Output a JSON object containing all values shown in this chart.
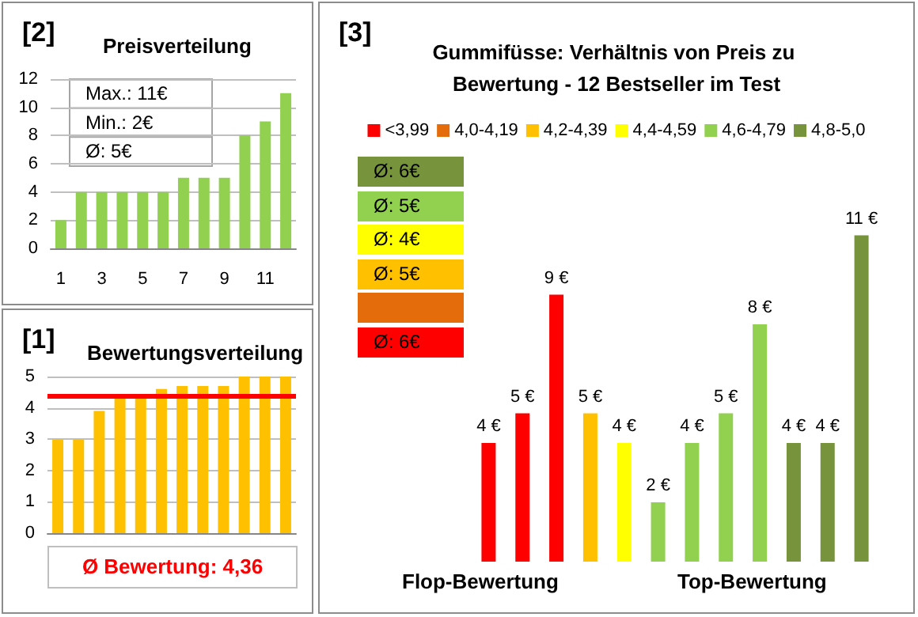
{
  "chart_data": [
    {
      "type": "bar",
      "title": "Preisverteilung",
      "annotations": [
        "[2]",
        "Max.: 11€",
        "Min.: 2€",
        "Ø: 5€"
      ],
      "categories": [
        "1",
        null,
        "3",
        null,
        "5",
        null,
        "7",
        null,
        "9",
        null,
        "11",
        null
      ],
      "values": [
        2,
        4,
        4,
        4,
        4,
        4,
        5,
        5,
        5,
        8,
        9,
        11
      ],
      "color": "#92d050",
      "ylim": [
        0,
        12
      ],
      "yticks": [
        0,
        2,
        4,
        6,
        8,
        10,
        12
      ],
      "grid": "y"
    },
    {
      "type": "bar",
      "title": "Gummifüsse: Verhältnis von Preis zu Bewertung - 12 Bestseller im Test",
      "annotations": [
        "[3]",
        "Ø: 6€",
        "Ø: 5€",
        "Ø: 4€",
        "Ø: 5€",
        "Ø: 6€",
        "Flop-Bewertung",
        "Top-Bewertung"
      ],
      "categories": [
        null,
        null,
        null,
        null,
        null,
        null,
        null,
        null,
        null,
        null,
        null,
        null
      ],
      "series": [
        {
          "name": "<3,99",
          "color": "#ff0000",
          "values": [
            4,
            5,
            9,
            null,
            null,
            null,
            null,
            null,
            null,
            null,
            null,
            null
          ],
          "value_labels": [
            "4 €",
            "5 €",
            "9 €",
            null,
            null,
            null,
            null,
            null,
            null,
            null,
            null,
            null
          ]
        },
        {
          "name": "4,0-4,19",
          "color": "#e46c0a",
          "values": [
            null,
            null,
            null,
            null,
            null,
            null,
            null,
            null,
            null,
            null,
            null,
            null
          ]
        },
        {
          "name": "4,2-4,39",
          "color": "#ffc000",
          "values": [
            null,
            null,
            null,
            5,
            null,
            null,
            null,
            null,
            null,
            null,
            null,
            null
          ],
          "value_labels": [
            null,
            null,
            null,
            "5 €",
            null,
            null,
            null,
            null,
            null,
            null,
            null,
            null
          ]
        },
        {
          "name": "4,4-4,59",
          "color": "#ffff00",
          "values": [
            null,
            null,
            null,
            null,
            4,
            null,
            null,
            null,
            null,
            null,
            null,
            null
          ],
          "value_labels": [
            null,
            null,
            null,
            null,
            "4 €",
            null,
            null,
            null,
            null,
            null,
            null,
            null
          ]
        },
        {
          "name": "4,6-4,79",
          "color": "#92d050",
          "values": [
            null,
            null,
            null,
            null,
            null,
            2,
            4,
            5,
            8,
            null,
            null,
            null
          ],
          "value_labels": [
            null,
            null,
            null,
            null,
            null,
            "2 €",
            "4 €",
            "5 €",
            "8 €",
            null,
            null,
            null
          ]
        },
        {
          "name": "4,8-5,0",
          "color": "#77933c",
          "values": [
            null,
            null,
            null,
            null,
            null,
            null,
            null,
            null,
            null,
            4,
            4,
            11
          ],
          "value_labels": [
            null,
            null,
            null,
            null,
            null,
            null,
            null,
            null,
            null,
            "4 €",
            "4 €",
            "11 €"
          ]
        }
      ],
      "stacked": true,
      "legend": "top",
      "tick_labels": false
    },
    {
      "type": "bar",
      "title": "Bewertungsverteilung",
      "annotations": [
        "[1]"
      ],
      "categories": [
        null,
        null,
        null,
        null,
        null,
        null,
        null,
        null,
        null,
        null,
        null,
        null
      ],
      "values": [
        3,
        3,
        3.9,
        4.3,
        4.3,
        4.6,
        4.7,
        4.7,
        4.7,
        5,
        5,
        5
      ],
      "color": "#ffc000",
      "ylim": [
        0,
        5
      ],
      "yticks": [
        0,
        1,
        2,
        3,
        4,
        5
      ],
      "grid": "y",
      "ref_lines": [
        {
          "axis": "y",
          "value": 4.36,
          "label": "Ø Bewertung: 4,36",
          "color": "#ff0000"
        }
      ],
      "tick_labels": "y"
    }
  ]
}
